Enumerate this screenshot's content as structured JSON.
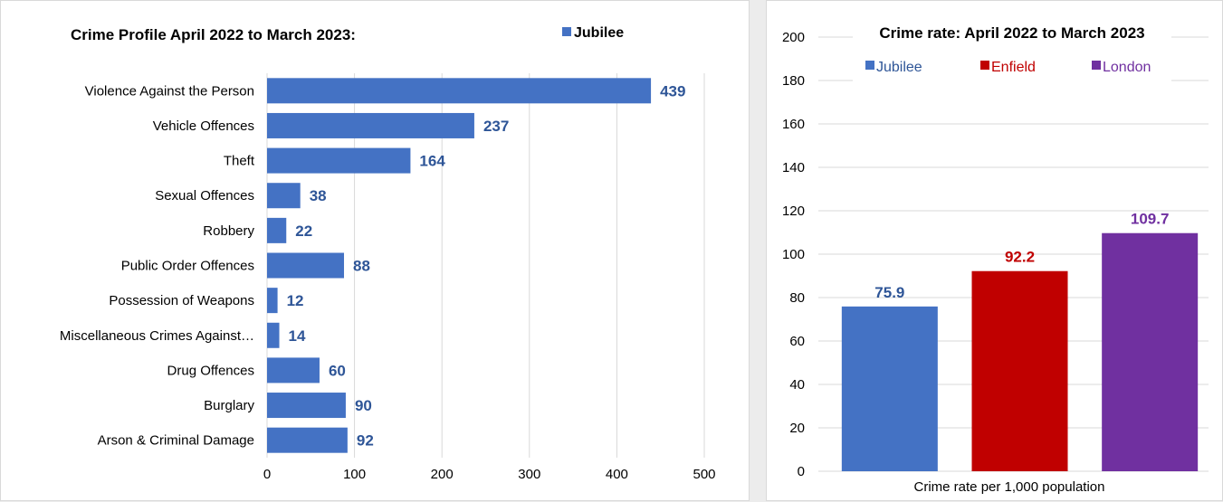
{
  "chart_data": [
    {
      "type": "bar",
      "orientation": "horizontal",
      "title": "Crime Profile April 2022 to March 2023:",
      "legend": [
        "Jubilee"
      ],
      "legend_position": "top-right",
      "categories": [
        "Violence Against the Person",
        "Vehicle Offences",
        "Theft",
        "Sexual Offences",
        "Robbery",
        "Public Order Offences",
        "Possession of Weapons",
        "Miscellaneous Crimes Against…",
        "Drug Offences",
        "Burglary",
        "Arson & Criminal Damage"
      ],
      "series": [
        {
          "name": "Jubilee",
          "color": "#4472c4",
          "values": [
            439,
            237,
            164,
            38,
            22,
            88,
            12,
            14,
            60,
            90,
            92
          ]
        }
      ],
      "xlim": [
        0,
        500
      ],
      "x_ticks": [
        "0",
        "100",
        "200",
        "300",
        "400",
        "500"
      ],
      "grid": true,
      "value_label_color": "#2e5597"
    },
    {
      "type": "bar",
      "orientation": "vertical",
      "title": "Crime rate: April 2022 to March 2023",
      "legend_position": "top",
      "xlabel": "Crime rate per 1,000 population",
      "series": [
        {
          "name": "Jubilee",
          "value": 75.9,
          "label": "75.9",
          "color": "#4472c4",
          "label_color": "#2e5597"
        },
        {
          "name": "Enfield",
          "value": 92.2,
          "label": "92.2",
          "color": "#c00000",
          "label_color": "#c00000"
        },
        {
          "name": "London",
          "value": 109.7,
          "label": "109.7",
          "color": "#7030a0",
          "label_color": "#7030a0"
        }
      ],
      "ylim": [
        0,
        200
      ],
      "y_ticks": [
        "0",
        "20",
        "40",
        "60",
        "80",
        "100",
        "120",
        "140",
        "160",
        "180",
        "200"
      ],
      "grid": true
    }
  ]
}
